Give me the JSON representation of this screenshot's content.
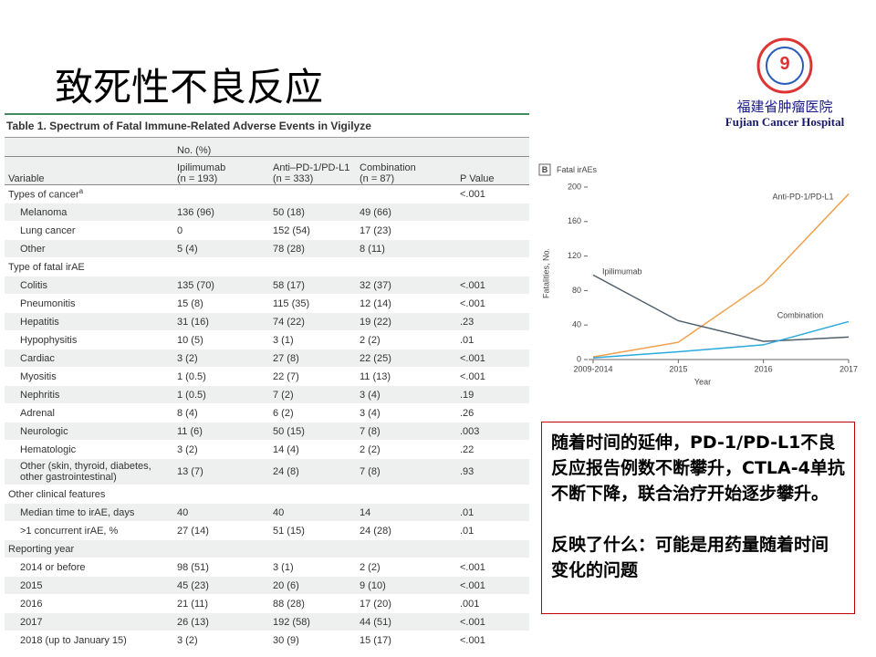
{
  "header": {
    "title": "致死性不良反应"
  },
  "logo": {
    "name_cn": "福建省肿瘤医院",
    "name_en": "Fujian Cancer Hospital"
  },
  "table": {
    "title": "Table 1. Spectrum of Fatal Immune-Related Adverse Events in Vigilyze",
    "group_header": "No. (%)",
    "columns": [
      [
        "Variable"
      ],
      [
        "Ipilimumab",
        "(n = 193)"
      ],
      [
        "Anti–PD-1/PD-L1",
        "(n = 333)"
      ],
      [
        "Combination",
        "(n = 87)"
      ],
      [
        "P Value"
      ]
    ],
    "sections": [
      {
        "heading": "Types of cancer",
        "note": "a",
        "p": "<.001",
        "rows": [
          [
            "Melanoma",
            "136 (96)",
            "50 (18)",
            "49 (66)"
          ],
          [
            "Lung cancer",
            "0",
            "152 (54)",
            "17 (23)"
          ],
          [
            "Other",
            "5 (4)",
            "78 (28)",
            "8 (11)"
          ]
        ]
      },
      {
        "heading": "Type of fatal irAE",
        "rows": [
          [
            "Colitis",
            "135 (70)",
            "58 (17)",
            "32 (37)",
            "<.001"
          ],
          [
            "Pneumonitis",
            "15 (8)",
            "115 (35)",
            "12 (14)",
            "<.001"
          ],
          [
            "Hepatitis",
            "31 (16)",
            "74 (22)",
            "19 (22)",
            ".23"
          ],
          [
            "Hypophysitis",
            "10 (5)",
            "3 (1)",
            "2 (2)",
            ".01"
          ],
          [
            "Cardiac",
            "3 (2)",
            "27 (8)",
            "22 (25)",
            "<.001"
          ],
          [
            "Myositis",
            "1 (0.5)",
            "22 (7)",
            "11 (13)",
            "<.001"
          ],
          [
            "Nephritis",
            "1 (0.5)",
            "7 (2)",
            "3 (4)",
            ".19"
          ],
          [
            "Adrenal",
            "8 (4)",
            "6 (2)",
            "3 (4)",
            ".26"
          ],
          [
            "Neurologic",
            "11 (6)",
            "50 (15)",
            "7 (8)",
            ".003"
          ],
          [
            "Hematologic",
            "3 (2)",
            "14 (4)",
            "2 (2)",
            ".22"
          ],
          [
            "Other (skin, thyroid, diabetes, other gastrointestinal)",
            "13 (7)",
            "24 (8)",
            "7 (8)",
            ".93"
          ]
        ]
      },
      {
        "heading": "Other clinical features",
        "rows": [
          [
            "Median time to irAE, days",
            "40",
            "40",
            "14",
            ".01"
          ],
          [
            ">1 concurrent irAE, %",
            "27 (14)",
            "51 (15)",
            "24 (28)",
            ".01"
          ]
        ]
      },
      {
        "heading": "Reporting year",
        "rows": [
          [
            "2014 or before",
            "98 (51)",
            "3 (1)",
            "2 (2)",
            "<.001"
          ],
          [
            "2015",
            "45 (23)",
            "20 (6)",
            "9 (10)",
            "<.001"
          ],
          [
            "2016",
            "21 (11)",
            "88 (28)",
            "17 (20)",
            ".001"
          ],
          [
            "2017",
            "26 (13)",
            "192 (58)",
            "44 (51)",
            "<.001"
          ],
          [
            "2018 (up to January 15)",
            "3 (2)",
            "30 (9)",
            "15 (17)",
            "<.001"
          ]
        ]
      }
    ]
  },
  "chart_data": {
    "type": "line",
    "panel": "B",
    "title": "Fatal irAEs",
    "y_label": "Fatalities, No.",
    "x_label": "Year",
    "categories": [
      "2009-2014",
      "2015",
      "2016",
      "2017"
    ],
    "series": [
      {
        "name": "Anti-PD-1/PD-L1",
        "color": "#f0a04b",
        "values": [
          3,
          20,
          88,
          192
        ]
      },
      {
        "name": "Ipilimumab",
        "color": "#4f5f6b",
        "values": [
          98,
          45,
          21,
          26
        ]
      },
      {
        "name": "Combination",
        "color": "#2aa9dc",
        "values": [
          2,
          9,
          17,
          44
        ]
      }
    ],
    "ylim": [
      0,
      200
    ],
    "yticks": [
      0,
      40,
      80,
      120,
      160,
      200
    ]
  },
  "textbox": {
    "paragraphs": [
      "随着时间的延伸，PD-1/PD-L1不良反应报告例数不断攀升，CTLA-4单抗不断下降，联合治疗开始逐步攀升。",
      "反映了什么：可能是用药量随着时间变化的问题"
    ]
  }
}
